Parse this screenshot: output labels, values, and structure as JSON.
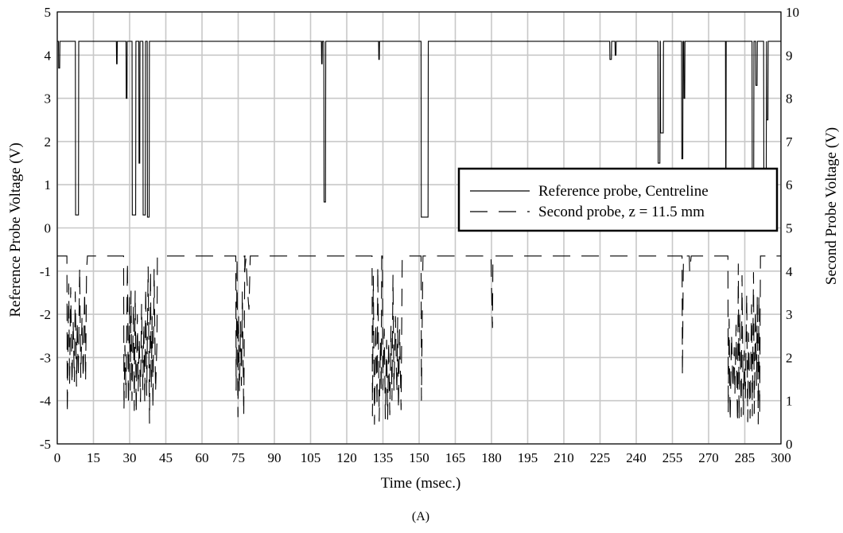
{
  "chart_data": {
    "type": "line",
    "caption": "(A)",
    "xlabel": "Time (msec.)",
    "ylabel": "Reference Probe Voltage (V)",
    "y2label": "Second Probe Voltage (V)",
    "xlim": [
      0,
      300
    ],
    "ylim": [
      -5,
      5
    ],
    "y2lim": [
      0,
      10
    ],
    "grid": true,
    "legend_position": "right",
    "x_ticks": [
      "0",
      "15",
      "30",
      "45",
      "60",
      "75",
      "90",
      "105",
      "120",
      "135",
      "150",
      "165",
      "180",
      "195",
      "210",
      "225",
      "240",
      "255",
      "270",
      "285",
      "300"
    ],
    "y_ticks": [
      "-5",
      "-4",
      "-3",
      "-2",
      "-1",
      "0",
      "1",
      "2",
      "3",
      "4",
      "5"
    ],
    "y2_ticks": [
      "0",
      "1",
      "2",
      "3",
      "4",
      "5",
      "6",
      "7",
      "8",
      "9",
      "10"
    ],
    "series": [
      {
        "name": "Reference probe, Centreline",
        "axis": "left",
        "style": "solid",
        "color": "#000000",
        "baseline": 4.32,
        "dips": [
          [
            0.5,
            0.6,
            3.7
          ],
          [
            7.5,
            1.4,
            0.3
          ],
          [
            24.5,
            0.4,
            3.8
          ],
          [
            28.5,
            0.5,
            3.0
          ],
          [
            31.0,
            1.6,
            0.3
          ],
          [
            33.8,
            0.5,
            1.5
          ],
          [
            35.5,
            1.1,
            0.3
          ],
          [
            37.3,
            0.9,
            0.25
          ],
          [
            109.5,
            0.4,
            3.8
          ],
          [
            110.5,
            0.8,
            0.6
          ],
          [
            133.2,
            0.4,
            3.9
          ],
          [
            150.8,
            3.0,
            0.25
          ],
          [
            229.0,
            0.8,
            3.9
          ],
          [
            231.2,
            0.5,
            4.0
          ],
          [
            249.0,
            0.9,
            1.5
          ],
          [
            250.0,
            1.3,
            2.2
          ],
          [
            258.8,
            0.6,
            1.6
          ],
          [
            259.7,
            0.5,
            3.0
          ],
          [
            277.0,
            0.3,
            1.0
          ],
          [
            288.0,
            0.8,
            1.0
          ],
          [
            289.5,
            0.7,
            3.3
          ],
          [
            292.8,
            1.2,
            1.3
          ],
          [
            294.0,
            0.7,
            2.5
          ]
        ]
      },
      {
        "name": "Second probe, z = 11.5 mm",
        "axis": "right",
        "style": "dashed",
        "color": "#000000",
        "baseline": 4.35,
        "bursts": [
          [
            4.0,
            12.5,
            0.7
          ],
          [
            27.5,
            41.5,
            0.4
          ],
          [
            74.0,
            78.0,
            0.55
          ],
          [
            77.5,
            80.0,
            3.4
          ],
          [
            130.5,
            134.5,
            0.4
          ],
          [
            134.8,
            143.0,
            0.35
          ],
          [
            150.8,
            151.6,
            0.6
          ],
          [
            179.8,
            180.6,
            3.3
          ],
          [
            259.0,
            259.6,
            0.9
          ],
          [
            262.0,
            262.8,
            3.8
          ],
          [
            278.0,
            291.5,
            0.45
          ]
        ]
      }
    ]
  }
}
